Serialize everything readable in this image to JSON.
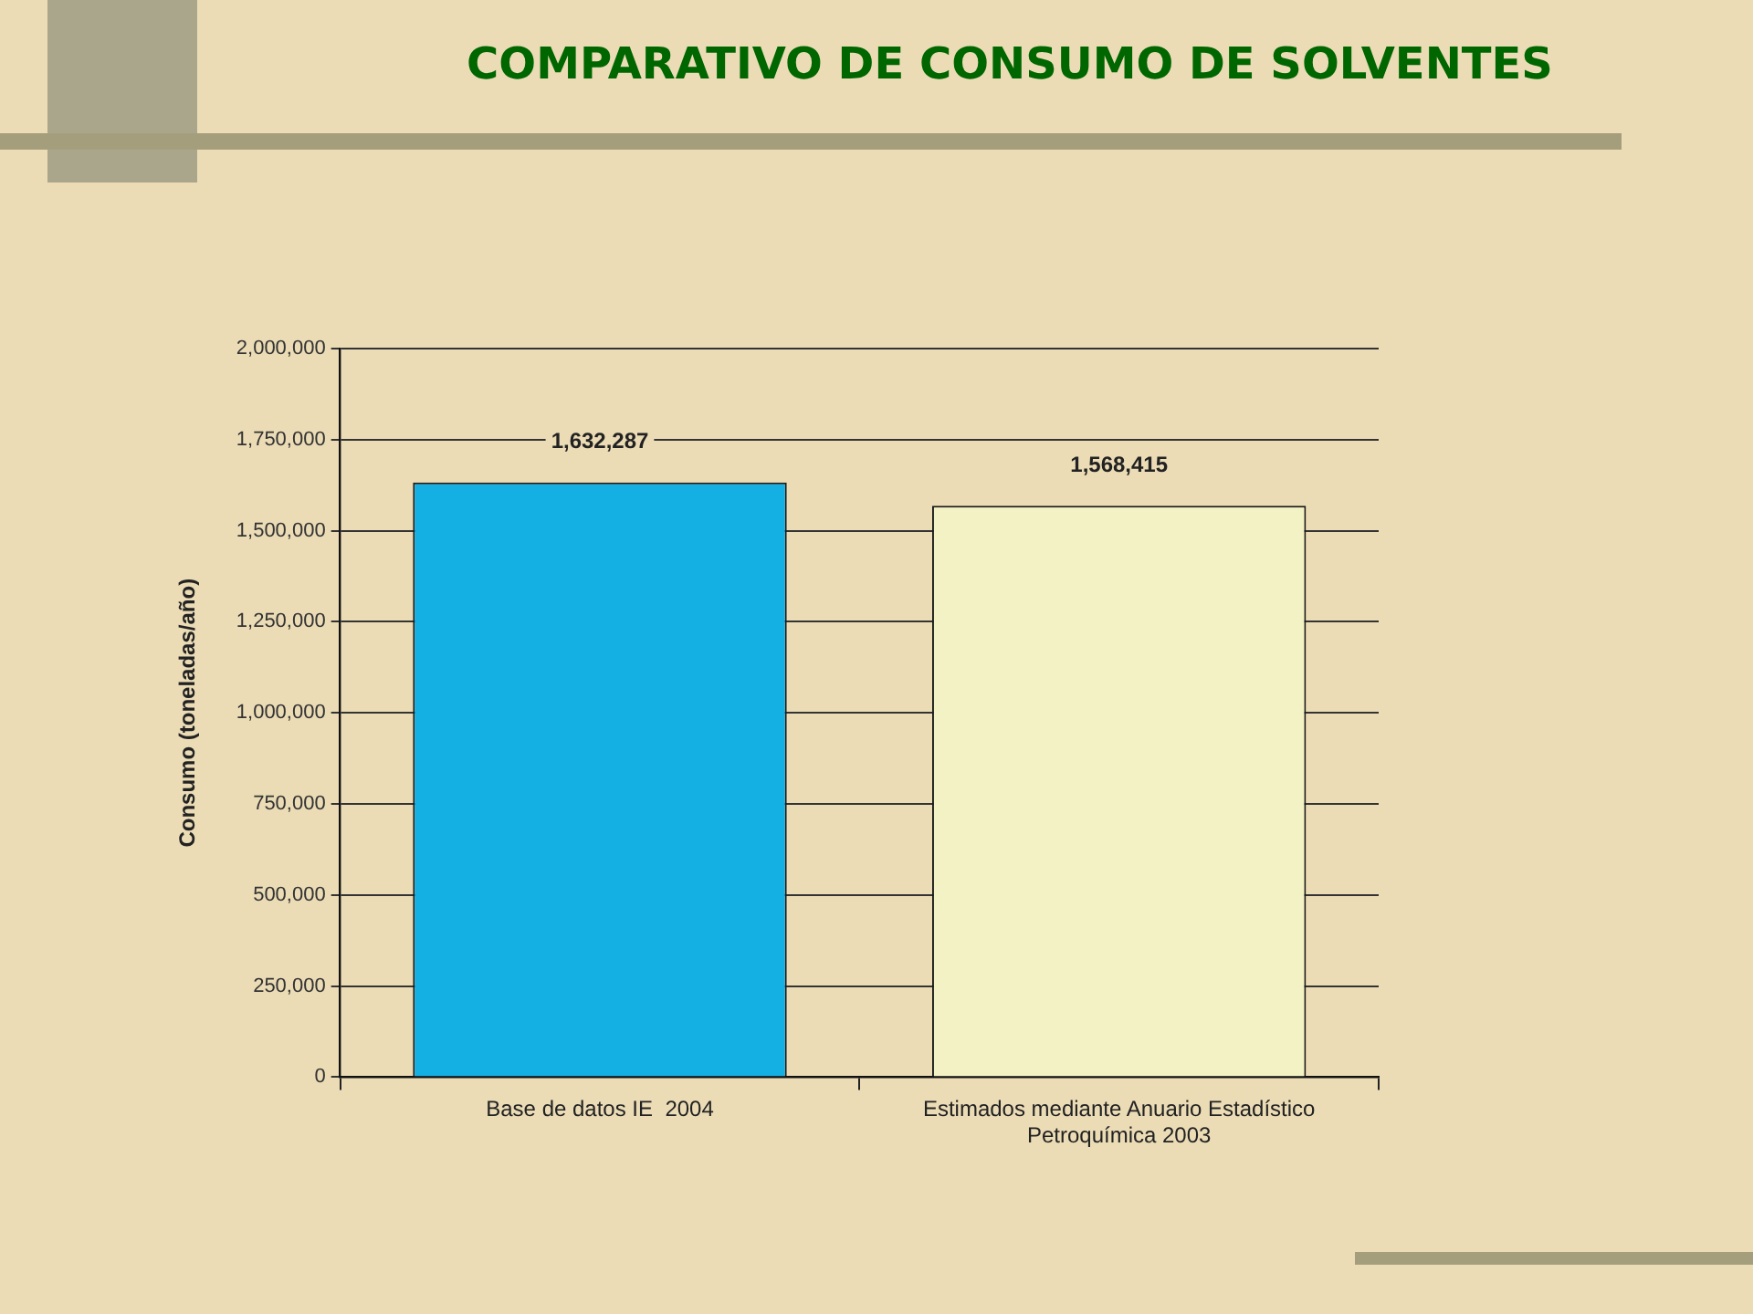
{
  "chart_data": {
    "type": "bar",
    "title": "COMPARATIVO DE CONSUMO DE SOLVENTES",
    "ylabel": "Consumo (toneladas/año)",
    "categories": [
      "Base de datos IE  2004",
      "Estimados mediante Anuario Estadístico Petroquímica 2003"
    ],
    "values": [
      1632287,
      1568415
    ],
    "value_labels": [
      "1,632,287",
      "1,568,415"
    ],
    "colors": [
      "#14b0e4",
      "#f2f2c4"
    ],
    "ylim": [
      0,
      2000000
    ],
    "yticks": [
      {
        "value": 0,
        "label": "0"
      },
      {
        "value": 250000,
        "label": "250,000"
      },
      {
        "value": 500000,
        "label": "500,000"
      },
      {
        "value": 750000,
        "label": "750,000"
      },
      {
        "value": 1000000,
        "label": "1,000,000"
      },
      {
        "value": 1250000,
        "label": "1,250,000"
      },
      {
        "value": 1500000,
        "label": "1,500,000"
      },
      {
        "value": 1750000,
        "label": "1,750,000"
      },
      {
        "value": 2000000,
        "label": "2,000,000"
      }
    ],
    "grid": "y"
  }
}
